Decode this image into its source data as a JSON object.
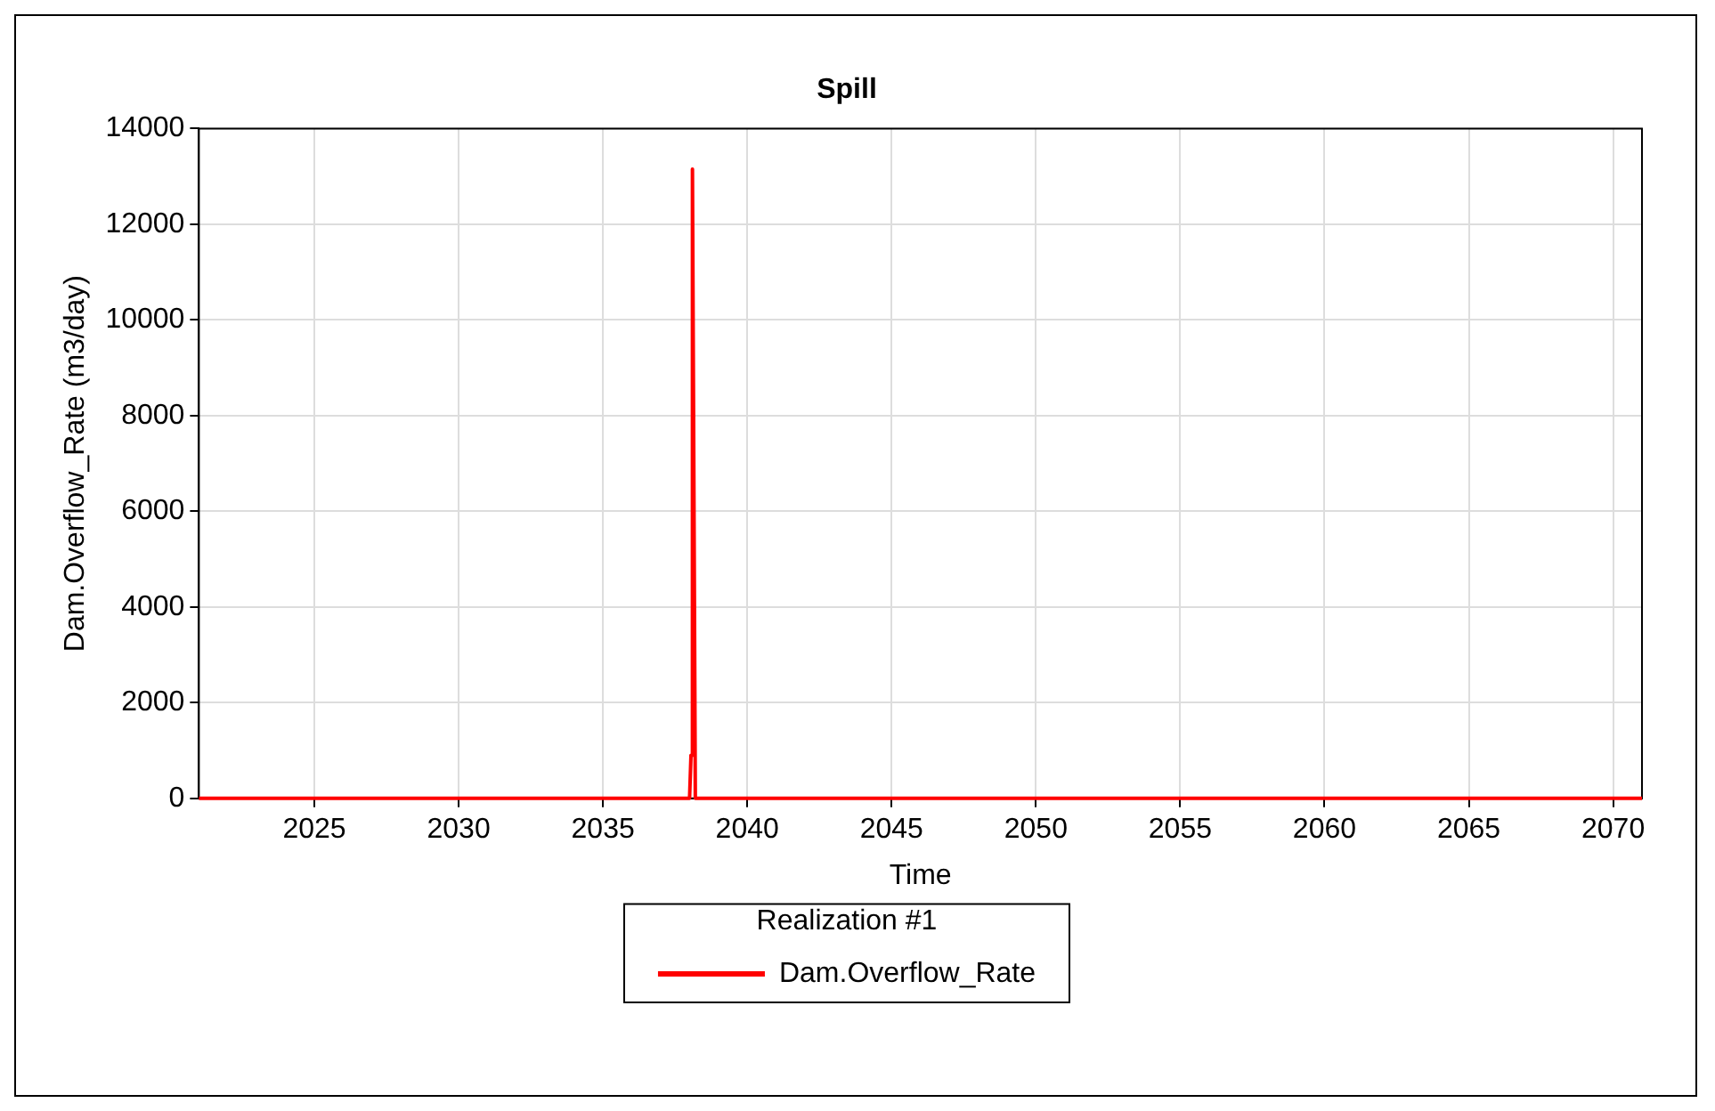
{
  "chart_data": {
    "type": "line",
    "title": "Spill",
    "xlabel": "Time",
    "ylabel": "Dam.Overflow_Rate (m3/day)",
    "legend_title": "Realization #1",
    "x": [
      2021,
      2038,
      2038.05,
      2038.1,
      2038.2,
      2071
    ],
    "series": [
      {
        "name": "Dam.Overflow_Rate",
        "color": "#ff0000",
        "values": [
          0,
          0,
          900,
          13150,
          0,
          0
        ]
      }
    ],
    "xlim": [
      2021,
      2071
    ],
    "xticks": [
      2025,
      2030,
      2035,
      2040,
      2045,
      2050,
      2055,
      2060,
      2065,
      2070
    ],
    "ylim": [
      0,
      14000
    ],
    "yticks": [
      0,
      2000,
      4000,
      6000,
      8000,
      10000,
      12000,
      14000
    ],
    "grid": true,
    "legend": "bottom",
    "marker": "none",
    "line_style": "solid"
  }
}
